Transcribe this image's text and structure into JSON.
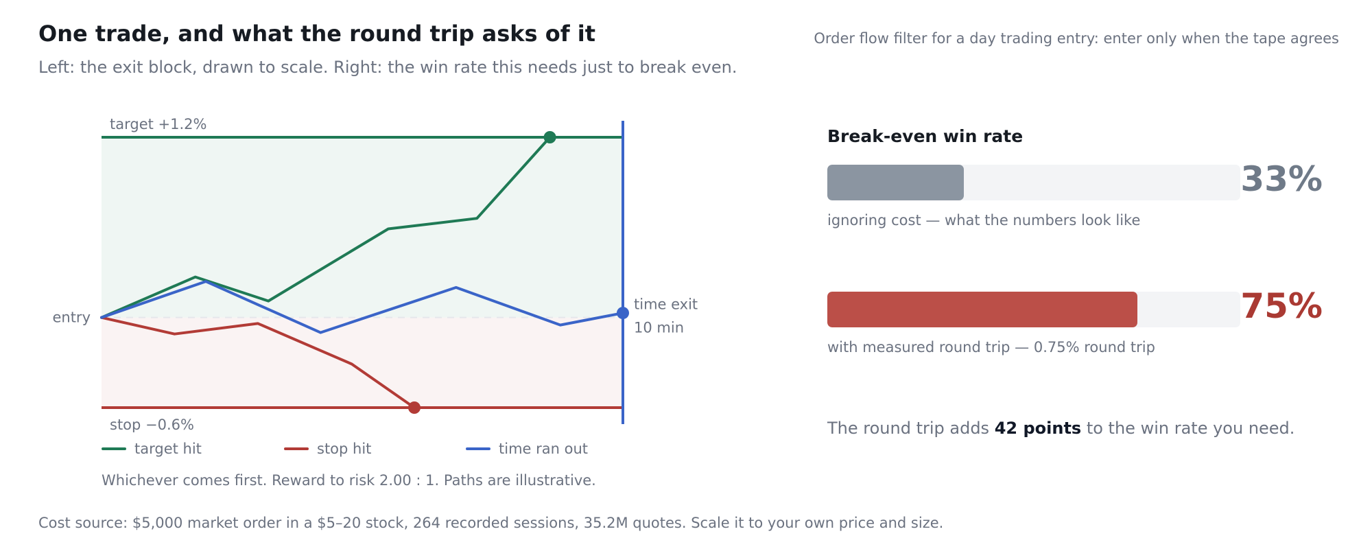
{
  "header": {
    "title": "One trade, and what the round trip asks of it",
    "subtitle": "Left: the exit block, drawn to scale. Right: the win rate this needs just to break even.",
    "corner_note": "Order flow filter for a day trading entry: enter only when the tape agrees"
  },
  "colors": {
    "target": "#1f7a55",
    "stop": "#b23b36",
    "time": "#3a64c8",
    "gray_bar": "#8b95a1",
    "red_bar": "#bb4f48",
    "track": "#f3f4f6"
  },
  "chart_data": [
    {
      "type": "line",
      "x_unit": "min",
      "y_unit": "%",
      "xlim": [
        0,
        10
      ],
      "ylim": [
        -0.6,
        1.2
      ],
      "levels": {
        "target": {
          "value": 1.2,
          "label": "target +1.2%"
        },
        "stop": {
          "value": -0.6,
          "label": "stop −0.6%"
        },
        "entry": {
          "value": 0,
          "label": "entry"
        },
        "time_exit": {
          "value": 10,
          "label_line1": "time exit",
          "label_line2": "10 min"
        }
      },
      "series": [
        {
          "name": "target hit",
          "color": "#1f7a55",
          "x": [
            0,
            1.8,
            3.2,
            5.5,
            7.2,
            8.6
          ],
          "y": [
            0,
            0.27,
            0.11,
            0.59,
            0.66,
            1.2
          ],
          "endpoint": true
        },
        {
          "name": "stop hit",
          "color": "#b23b36",
          "x": [
            0,
            1.4,
            3.0,
            4.8,
            6.0
          ],
          "y": [
            0,
            -0.11,
            -0.04,
            -0.31,
            -0.6
          ],
          "endpoint": true
        },
        {
          "name": "time ran out",
          "color": "#3a64c8",
          "x": [
            0,
            2.0,
            4.2,
            6.8,
            8.8,
            10
          ],
          "y": [
            0,
            0.24,
            -0.1,
            0.2,
            -0.05,
            0.03
          ],
          "endpoint": true
        }
      ],
      "note": "Whichever comes first. Reward to risk 2.00 : 1. Paths are illustrative."
    },
    {
      "type": "bar",
      "title": "Break-even win rate",
      "xlim": [
        0,
        100
      ],
      "categories": [
        "ignoring cost — what the numbers look like",
        "with measured round trip — 0.75% round trip"
      ],
      "values": [
        33,
        75
      ],
      "value_labels": [
        "33%",
        "75%"
      ],
      "colors": [
        "#8b95a1",
        "#bb4f48"
      ],
      "value_text_colors": [
        "#6f7a88",
        "#aa3a33"
      ]
    }
  ],
  "summary": {
    "prefix": "The round trip adds ",
    "emphasis": "42 points",
    "suffix": " to the win rate you need."
  },
  "footer": "Cost source: $5,000 market order in a $5–20 stock, 264 recorded sessions, 35.2M quotes. Scale it to your own price and size."
}
